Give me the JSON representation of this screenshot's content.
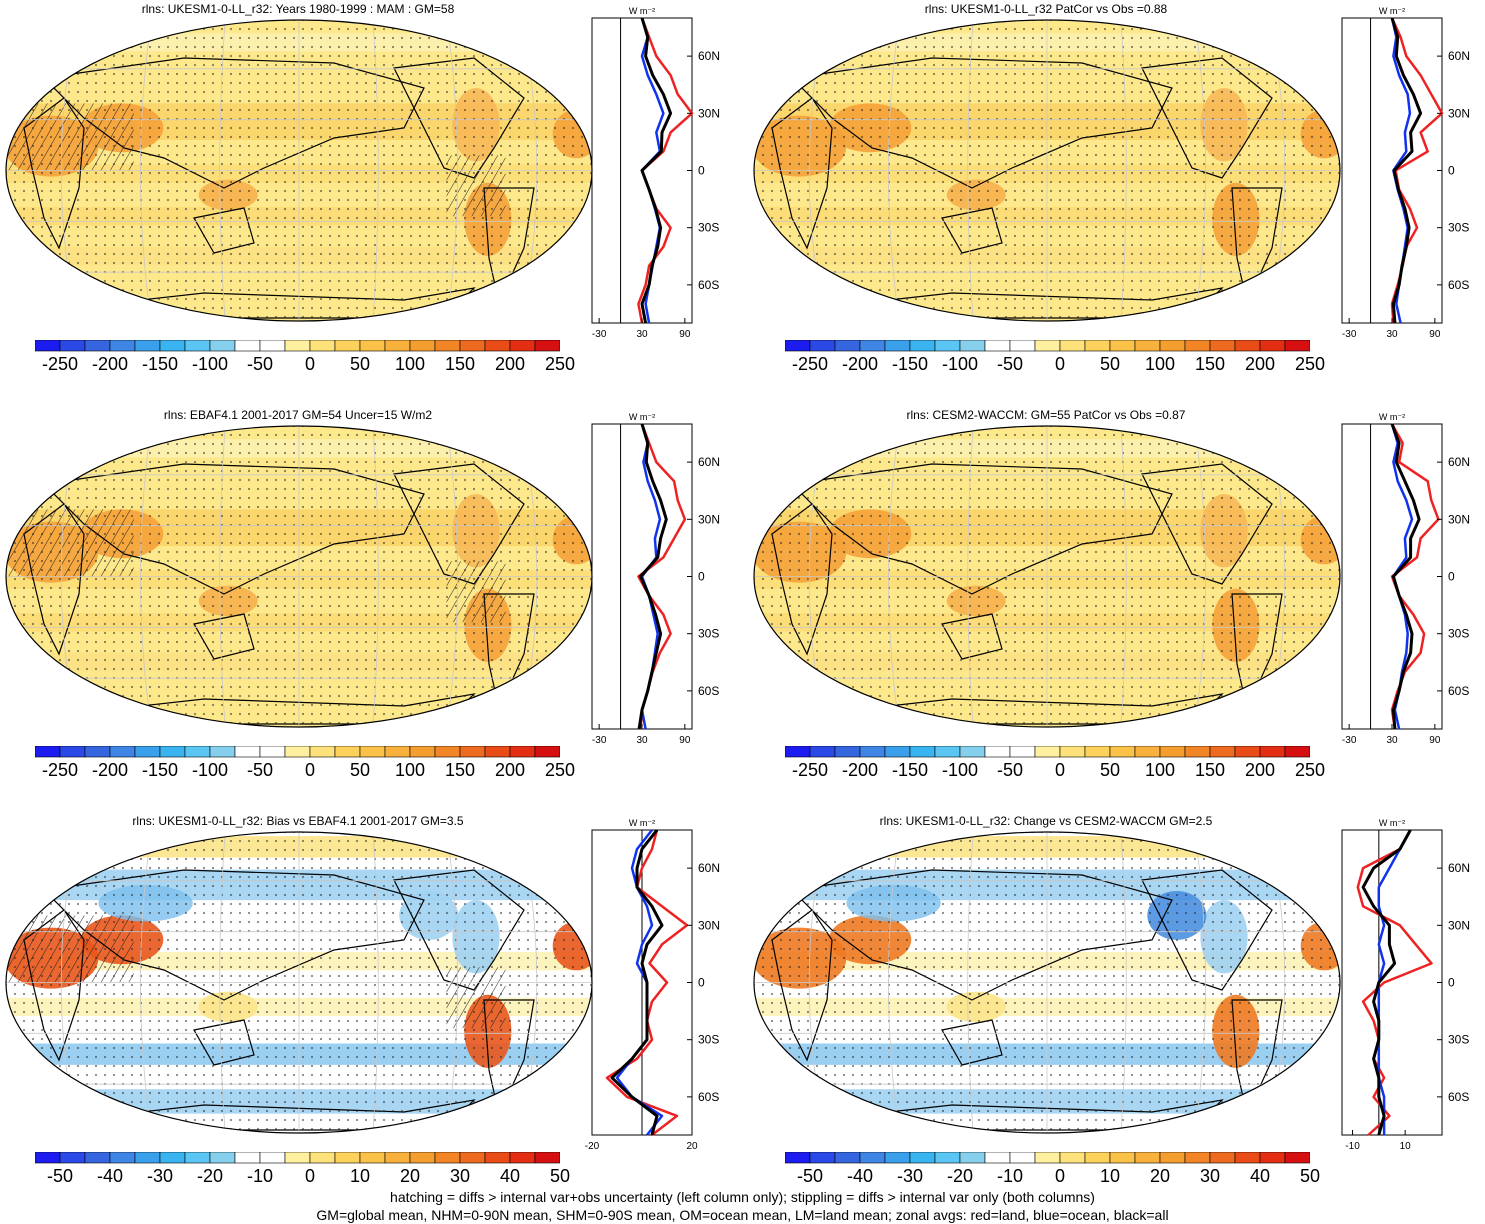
{
  "footer": {
    "line1": "hatching = diffs > internal var+obs uncertainty (left column only); stippling = diffs > internal var only (both columns)",
    "line2": "GM=global mean, NHM=0-90N mean, SHM=0-90S mean, OM=ocean mean, LM=land mean; zonal avgs: red=land, blue=ocean, black=all"
  },
  "colors": {
    "land": "#ee2222",
    "ocean": "#1133ee",
    "all": "#000000"
  },
  "panels": [
    {
      "title": "rlns: UKESM1-0-LL_r32: Years 1980-1999 : MAM : GM=58",
      "profile_unit": "W m⁻²",
      "colorbar_kind": "absolute",
      "hatching": true,
      "colorbar_labels": [
        "-250",
        "-200",
        "-150",
        "-100",
        "-50",
        "0",
        "50",
        "100",
        "150",
        "200",
        "250"
      ],
      "lat_ticks": [
        "60N",
        "30N",
        "0",
        "30S",
        "60S"
      ],
      "chart_data": {
        "type": "line",
        "xlabel": "W m-2",
        "xlim": [
          -40,
          100
        ],
        "x_ticks": [
          -30,
          30,
          90
        ],
        "x_tick_labels": [
          "-30",
          "30",
          "90"
        ],
        "ylim": [
          -80,
          80
        ],
        "lat": [
          80,
          70,
          60,
          50,
          40,
          30,
          20,
          10,
          0,
          -10,
          -20,
          -30,
          -40,
          -50,
          -60,
          -70,
          -80
        ],
        "series": [
          {
            "name": "land",
            "values": [
              30,
              40,
              50,
              70,
              80,
              100,
              70,
              60,
              30,
              40,
              50,
              70,
              60,
              40,
              35,
              25,
              30
            ]
          },
          {
            "name": "ocean",
            "values": [
              30,
              38,
              30,
              38,
              50,
              60,
              50,
              55,
              30,
              40,
              48,
              55,
              50,
              45,
              40,
              35,
              40
            ]
          },
          {
            "name": "all",
            "values": [
              30,
              38,
              35,
              45,
              60,
              70,
              58,
              57,
              30,
              40,
              49,
              56,
              52,
              44,
              40,
              30,
              35
            ]
          }
        ]
      }
    },
    {
      "title": "rlns: UKESM1-0-LL_r32 PatCor vs Obs =0.88",
      "profile_unit": "W m⁻²",
      "colorbar_kind": "absolute",
      "hatching": false,
      "colorbar_labels": [
        "-250",
        "-200",
        "-150",
        "-100",
        "-50",
        "0",
        "50",
        "100",
        "150",
        "200",
        "250"
      ],
      "lat_ticks": [
        "60N",
        "30N",
        "0",
        "30S",
        "60S"
      ],
      "chart_data": {
        "type": "line",
        "xlabel": "W m-2",
        "xlim": [
          -40,
          100
        ],
        "x_ticks": [
          -30,
          30,
          90
        ],
        "x_tick_labels": [
          "-30",
          "30",
          "90"
        ],
        "ylim": [
          -80,
          80
        ],
        "lat": [
          80,
          70,
          60,
          50,
          40,
          30,
          20,
          10,
          0,
          -10,
          -20,
          -30,
          -40,
          -50,
          -60,
          -70,
          -80
        ],
        "series": [
          {
            "name": "land",
            "values": [
              30,
              42,
              50,
              70,
              85,
              100,
              70,
              80,
              35,
              40,
              55,
              65,
              50,
              45,
              38,
              30,
              32
            ]
          },
          {
            "name": "ocean",
            "values": [
              30,
              36,
              32,
              40,
              52,
              55,
              48,
              50,
              32,
              38,
              46,
              52,
              48,
              44,
              40,
              36,
              42
            ]
          },
          {
            "name": "all",
            "values": [
              30,
              38,
              36,
              46,
              60,
              70,
              56,
              58,
              33,
              39,
              48,
              54,
              50,
              44,
              40,
              32,
              34
            ]
          }
        ]
      }
    },
    {
      "title": "rlns: EBAF4.1 2001-2017 GM=54 Uncer=15 W/m2",
      "profile_unit": "W m⁻²",
      "colorbar_kind": "absolute",
      "hatching": true,
      "colorbar_labels": [
        "-250",
        "-200",
        "-150",
        "-100",
        "-50",
        "0",
        "50",
        "100",
        "150",
        "200",
        "250"
      ],
      "lat_ticks": [
        "60N",
        "30N",
        "0",
        "30S",
        "60S"
      ],
      "chart_data": {
        "type": "line",
        "xlabel": "W m-2",
        "xlim": [
          -40,
          100
        ],
        "x_ticks": [
          -30,
          30,
          90
        ],
        "x_tick_labels": [
          "-30",
          "30",
          "90"
        ],
        "ylim": [
          -80,
          80
        ],
        "lat": [
          80,
          70,
          60,
          50,
          40,
          30,
          20,
          10,
          0,
          -10,
          -20,
          -30,
          -40,
          -50,
          -60,
          -70,
          -80
        ],
        "series": [
          {
            "name": "land",
            "values": [
              30,
              40,
              50,
              75,
              80,
              90,
              75,
              60,
              25,
              40,
              60,
              70,
              55,
              45,
              38,
              30,
              28
            ]
          },
          {
            "name": "ocean",
            "values": [
              30,
              38,
              32,
              38,
              48,
              55,
              48,
              50,
              30,
              40,
              46,
              52,
              48,
              44,
              38,
              30,
              35
            ]
          },
          {
            "name": "all",
            "values": [
              30,
              38,
              36,
              45,
              56,
              64,
              56,
              52,
              28,
              40,
              49,
              56,
              50,
              44,
              38,
              30,
              26
            ]
          }
        ]
      }
    },
    {
      "title": "rlns: CESM2-WACCM: GM=55 PatCor vs Obs =0.87",
      "profile_unit": "W m⁻²",
      "colorbar_kind": "absolute",
      "hatching": false,
      "colorbar_labels": [
        "-250",
        "-200",
        "-150",
        "-100",
        "-50",
        "0",
        "50",
        "100",
        "150",
        "200",
        "250"
      ],
      "lat_ticks": [
        "60N",
        "30N",
        "0",
        "30S",
        "60S"
      ],
      "chart_data": {
        "type": "line",
        "xlabel": "W m-2",
        "xlim": [
          -40,
          100
        ],
        "x_ticks": [
          -30,
          30,
          90
        ],
        "x_tick_labels": [
          "-30",
          "30",
          "90"
        ],
        "ylim": [
          -80,
          80
        ],
        "lat": [
          80,
          70,
          60,
          50,
          40,
          30,
          20,
          10,
          0,
          -10,
          -20,
          -30,
          -40,
          -50,
          -60,
          -70,
          -80
        ],
        "series": [
          {
            "name": "land",
            "values": [
              30,
              45,
              40,
              80,
              85,
              95,
              70,
              65,
              30,
              40,
              60,
              75,
              70,
              48,
              38,
              30,
              34
            ]
          },
          {
            "name": "ocean",
            "values": [
              30,
              38,
              32,
              38,
              50,
              58,
              48,
              50,
              32,
              40,
              48,
              52,
              50,
              44,
              40,
              34,
              40
            ]
          },
          {
            "name": "all",
            "values": [
              30,
              40,
              36,
              48,
              60,
              68,
              56,
              56,
              32,
              40,
              50,
              58,
              56,
              46,
              40,
              32,
              34
            ]
          }
        ]
      }
    },
    {
      "title": "rlns: UKESM1-0-LL_r32: Bias vs EBAF4.1 2001-2017 GM=3.5",
      "profile_unit": "W m⁻²",
      "colorbar_kind": "difference",
      "hatching": true,
      "colorbar_labels": [
        "-50",
        "-40",
        "-30",
        "-20",
        "-10",
        "0",
        "10",
        "20",
        "30",
        "40",
        "50"
      ],
      "lat_ticks": [
        "60N",
        "30N",
        "0",
        "30S",
        "60S"
      ],
      "chart_data": {
        "type": "line",
        "xlabel": "W m-2",
        "xlim": [
          -20,
          20
        ],
        "x_ticks": [
          -20,
          0,
          20
        ],
        "x_tick_labels": [
          "-20",
          "",
          "20"
        ],
        "ylim": [
          -80,
          80
        ],
        "lat": [
          80,
          70,
          60,
          50,
          40,
          30,
          20,
          10,
          0,
          -10,
          -20,
          -30,
          -40,
          -50,
          -60,
          -70,
          -80
        ],
        "series": [
          {
            "name": "land",
            "values": [
              6,
              4,
              0,
              -2,
              8,
              18,
              8,
              3,
              10,
              4,
              2,
              4,
              -2,
              -14,
              -6,
              14,
              4
            ]
          },
          {
            "name": "ocean",
            "values": [
              4,
              -2,
              -4,
              -2,
              2,
              4,
              0,
              -2,
              2,
              2,
              2,
              2,
              -4,
              -10,
              -4,
              8,
              2
            ]
          },
          {
            "name": "all",
            "values": [
              6,
              0,
              -2,
              -2,
              4,
              8,
              2,
              0,
              2,
              2,
              2,
              2,
              -4,
              -12,
              -4,
              6,
              4
            ]
          }
        ]
      }
    },
    {
      "title": "rlns: UKESM1-0-LL_r32: Change vs CESM2-WACCM GM=2.5",
      "profile_unit": "W m⁻²",
      "colorbar_kind": "difference",
      "hatching": false,
      "colorbar_labels": [
        "-50",
        "-40",
        "-30",
        "-20",
        "-10",
        "0",
        "10",
        "20",
        "30",
        "40",
        "50"
      ],
      "lat_ticks": [
        "60N",
        "30N",
        "0",
        "30S",
        "60S"
      ],
      "chart_data": {
        "type": "line",
        "xlabel": "W m-2",
        "xlim": [
          -14,
          24
        ],
        "x_ticks": [
          -10,
          0,
          10
        ],
        "x_tick_labels": [
          "-10",
          "",
          "10"
        ],
        "ylim": [
          -80,
          80
        ],
        "lat": [
          80,
          70,
          60,
          50,
          40,
          30,
          20,
          10,
          0,
          -10,
          -20,
          -30,
          -40,
          -50,
          -60,
          -70,
          -80
        ],
        "series": [
          {
            "name": "land",
            "values": [
              12,
              8,
              -6,
              -8,
              -6,
              8,
              14,
              20,
              2,
              -6,
              -2,
              0,
              -2,
              2,
              -2,
              4,
              -4
            ]
          },
          {
            "name": "ocean",
            "values": [
              12,
              8,
              4,
              0,
              0,
              2,
              0,
              2,
              0,
              0,
              0,
              0,
              0,
              0,
              2,
              2,
              2
            ]
          },
          {
            "name": "all",
            "values": [
              12,
              8,
              -2,
              -6,
              -2,
              4,
              4,
              6,
              0,
              -2,
              0,
              0,
              -2,
              0,
              0,
              2,
              0
            ]
          }
        ]
      }
    }
  ]
}
